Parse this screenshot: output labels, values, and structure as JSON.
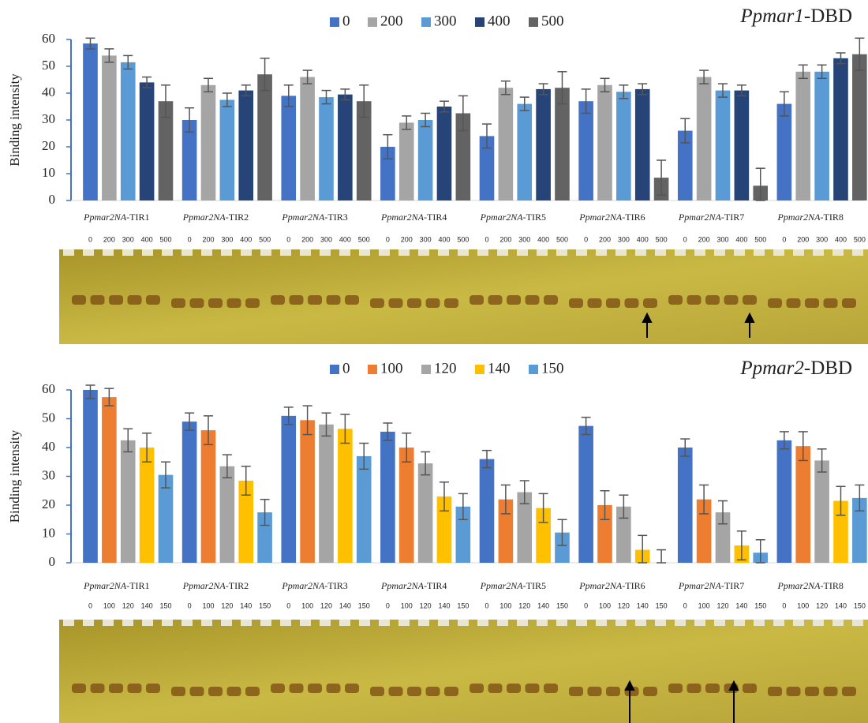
{
  "chart_data": [
    {
      "type": "bar",
      "title": "Ppmar1-DBD",
      "y_label": "Binding intensity",
      "categories": [
        "Ppmar2NA-TIR1",
        "Ppmar2NA-TIR2",
        "Ppmar2NA-TIR3",
        "Ppmar2NA-TIR4",
        "Ppmar2NA-TIR5",
        "Ppmar2NA-TIR6",
        "Ppmar2NA-TIR7",
        "Ppmar2NA-TIR8"
      ],
      "series": [
        {
          "name": "0",
          "color": "#4472c4",
          "values": [
            58.5,
            30,
            39,
            20,
            24,
            37,
            26,
            36
          ],
          "errors": [
            2,
            4.5,
            4,
            4.5,
            4.5,
            4.5,
            4.5,
            4.5
          ]
        },
        {
          "name": "200",
          "color": "#a5a5a5",
          "values": [
            54,
            43,
            46,
            29,
            42,
            43,
            46,
            48
          ],
          "errors": [
            2.5,
            2.5,
            2.5,
            2.5,
            2.5,
            2.5,
            2.5,
            2.5
          ]
        },
        {
          "name": "300",
          "color": "#5b9bd5",
          "values": [
            51.5,
            37.5,
            38.5,
            30,
            36,
            40.5,
            41,
            48
          ],
          "errors": [
            2.5,
            2.5,
            2.5,
            2.5,
            2.5,
            2.5,
            2.5,
            2.5
          ]
        },
        {
          "name": "400",
          "color": "#264478",
          "values": [
            44,
            41,
            39.5,
            35,
            41.5,
            41.5,
            41,
            53
          ],
          "errors": [
            2,
            2,
            2,
            2,
            2,
            2,
            2,
            2
          ]
        },
        {
          "name": "500",
          "color": "#636363",
          "values": [
            37,
            47,
            37,
            32.5,
            42,
            8.5,
            5.5,
            54.5
          ],
          "errors": [
            6,
            6,
            6,
            6.5,
            6,
            6.5,
            6.5,
            6
          ]
        }
      ],
      "ylim": [
        0,
        60
      ],
      "yticks": [
        0,
        10,
        20,
        30,
        40,
        50,
        60
      ],
      "legend": "top"
    },
    {
      "type": "bar",
      "title": "Ppmar2-DBD",
      "y_label": "Binding intensity",
      "categories": [
        "Ppmar2NA-TIR1",
        "Ppmar2NA-TIR2",
        "Ppmar2NA-TIR3",
        "Ppmar2NA-TIR4",
        "Ppmar2NA-TIR5",
        "Ppmar2NA-TIR6",
        "Ppmar2NA-TIR7",
        "Ppmar2NA-TIR8"
      ],
      "series": [
        {
          "name": "0",
          "color": "#4472c4",
          "values": [
            60,
            49,
            51,
            45.5,
            36,
            47.5,
            40,
            42.5
          ],
          "errors": [
            3,
            3,
            3,
            3,
            3,
            3,
            3,
            3
          ]
        },
        {
          "name": "100",
          "color": "#ed7d31",
          "values": [
            57.5,
            46,
            49.5,
            40,
            22,
            20,
            22,
            40.5
          ],
          "errors": [
            3,
            5,
            5,
            5,
            5,
            5,
            5,
            5
          ]
        },
        {
          "name": "120",
          "color": "#a5a5a5",
          "values": [
            42.5,
            33.5,
            48,
            34.5,
            24.5,
            19.5,
            17.5,
            35.5
          ],
          "errors": [
            4,
            4,
            4,
            4,
            4,
            4,
            4,
            4
          ]
        },
        {
          "name": "140",
          "color": "#ffc000",
          "values": [
            40,
            28.5,
            46.5,
            23,
            19,
            4.5,
            6,
            21.5
          ],
          "errors": [
            5,
            5,
            5,
            5,
            5,
            5,
            5,
            5
          ]
        },
        {
          "name": "150",
          "color": "#5b9bd5",
          "values": [
            30.5,
            17.5,
            37,
            19.5,
            10.5,
            0,
            3.5,
            22.5
          ],
          "errors": [
            4.5,
            4.5,
            4.5,
            4.5,
            4.5,
            4.5,
            4.5,
            4.5
          ]
        }
      ],
      "ylim": [
        0,
        60
      ],
      "yticks": [
        0,
        10,
        20,
        30,
        40,
        50,
        60
      ],
      "legend": "top"
    }
  ]
}
